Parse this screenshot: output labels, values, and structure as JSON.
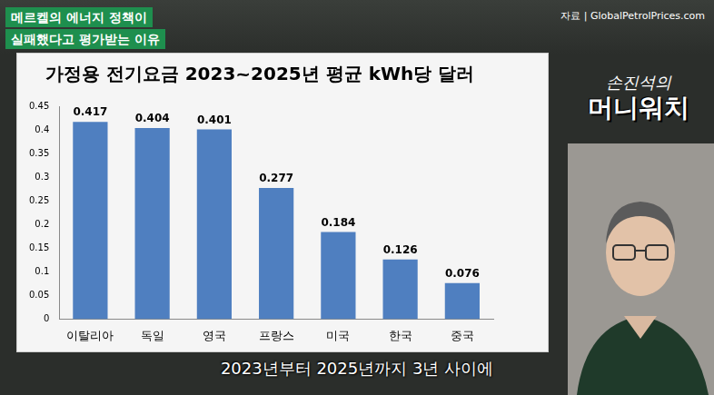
{
  "chart_data": {
    "type": "bar",
    "title": "가정용 전기요금 2023~2025년 평균 kWh당 달러",
    "categories": [
      "이탈리아",
      "독일",
      "영국",
      "프랑스",
      "미국",
      "한국",
      "중국"
    ],
    "values": [
      0.417,
      0.404,
      0.401,
      0.277,
      0.184,
      0.126,
      0.076
    ],
    "color": "#4f7fc0",
    "ylim": [
      0,
      0.45
    ],
    "yticks": [
      0,
      0.05,
      0.1,
      0.15,
      0.2,
      0.25,
      0.3,
      0.35,
      0.4,
      0.45
    ],
    "grid": false,
    "data_labels": true
  },
  "overlay": {
    "headline": [
      "메르켈의 에너지 정책이",
      "실패했다고 평가받는 이유"
    ],
    "source": "자료 | GlobalPetrolPrices.com",
    "logo": [
      "손진석의",
      "머니워치"
    ],
    "caption": "2023년부터 2025년까지 3년 사이에"
  }
}
